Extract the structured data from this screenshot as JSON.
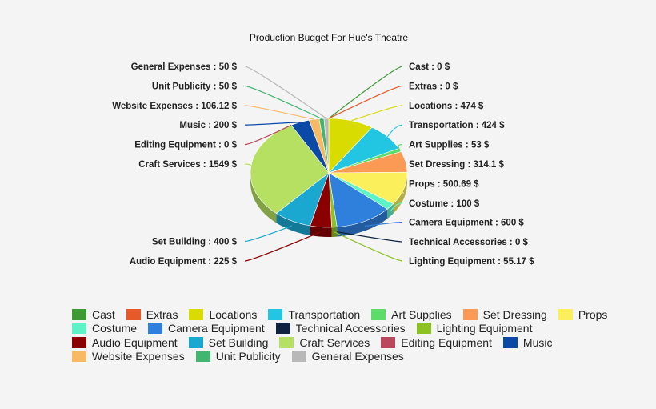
{
  "chart_data": {
    "type": "pie",
    "title": "Production Budget For Hue's Theatre",
    "unit": "$",
    "slices": [
      {
        "label": "Cast",
        "value": 0,
        "text": "Cast : 0 $",
        "color": "#3d9a33"
      },
      {
        "label": "Extras",
        "value": 0,
        "text": "Extras : 0 $",
        "color": "#e8592a"
      },
      {
        "label": "Locations",
        "value": 474,
        "text": "Locations : 474 $",
        "color": "#d8dc00"
      },
      {
        "label": "Transportation",
        "value": 424,
        "text": "Transportation : 424 $",
        "color": "#22c6e2"
      },
      {
        "label": "Art Supplies",
        "value": 53,
        "text": "Art Supplies : 53 $",
        "color": "#5ddc6a"
      },
      {
        "label": "Set Dressing",
        "value": 314.1,
        "text": "Set Dressing : 314.1 $",
        "color": "#fb9a55"
      },
      {
        "label": "Props",
        "value": 500.69,
        "text": "Props : 500.69 $",
        "color": "#fcef5c"
      },
      {
        "label": "Costume",
        "value": 100,
        "text": "Costume : 100 $",
        "color": "#5ef2c7"
      },
      {
        "label": "Camera Equipment",
        "value": 600,
        "text": "Camera Equipment : 600 $",
        "color": "#2f7fdc"
      },
      {
        "label": "Technical Accessories",
        "value": 0,
        "text": "Technical Accessories : 0 $",
        "color": "#0f2340"
      },
      {
        "label": "Lighting Equipment",
        "value": 55.17,
        "text": "Lighting Equipment : 55.17 $",
        "color": "#8cc221"
      },
      {
        "label": "Audio Equipment",
        "value": 225,
        "text": "Audio Equipment : 225 $",
        "color": "#8a0000"
      },
      {
        "label": "Set Building",
        "value": 400,
        "text": "Set Building : 400 $",
        "color": "#1ba8d0"
      },
      {
        "label": "Craft Services",
        "value": 1549,
        "text": "Craft Services : 1549 $",
        "color": "#b5e061"
      },
      {
        "label": "Editing Equipment",
        "value": 0,
        "text": "Editing Equipment : 0 $",
        "color": "#b9485c"
      },
      {
        "label": "Music",
        "value": 200,
        "text": "Music : 200 $",
        "color": "#0a4aa6"
      },
      {
        "label": "Website Expenses",
        "value": 106.12,
        "text": "Website Expenses : 106.12 $",
        "color": "#f7b963"
      },
      {
        "label": "Unit Publicity",
        "value": 50,
        "text": "Unit Publicity : 50 $",
        "color": "#41b671"
      },
      {
        "label": "General Expenses",
        "value": 50,
        "text": "General Expenses : 50 $",
        "color": "#b8b8b8"
      }
    ],
    "legend_placement": "bottom"
  }
}
